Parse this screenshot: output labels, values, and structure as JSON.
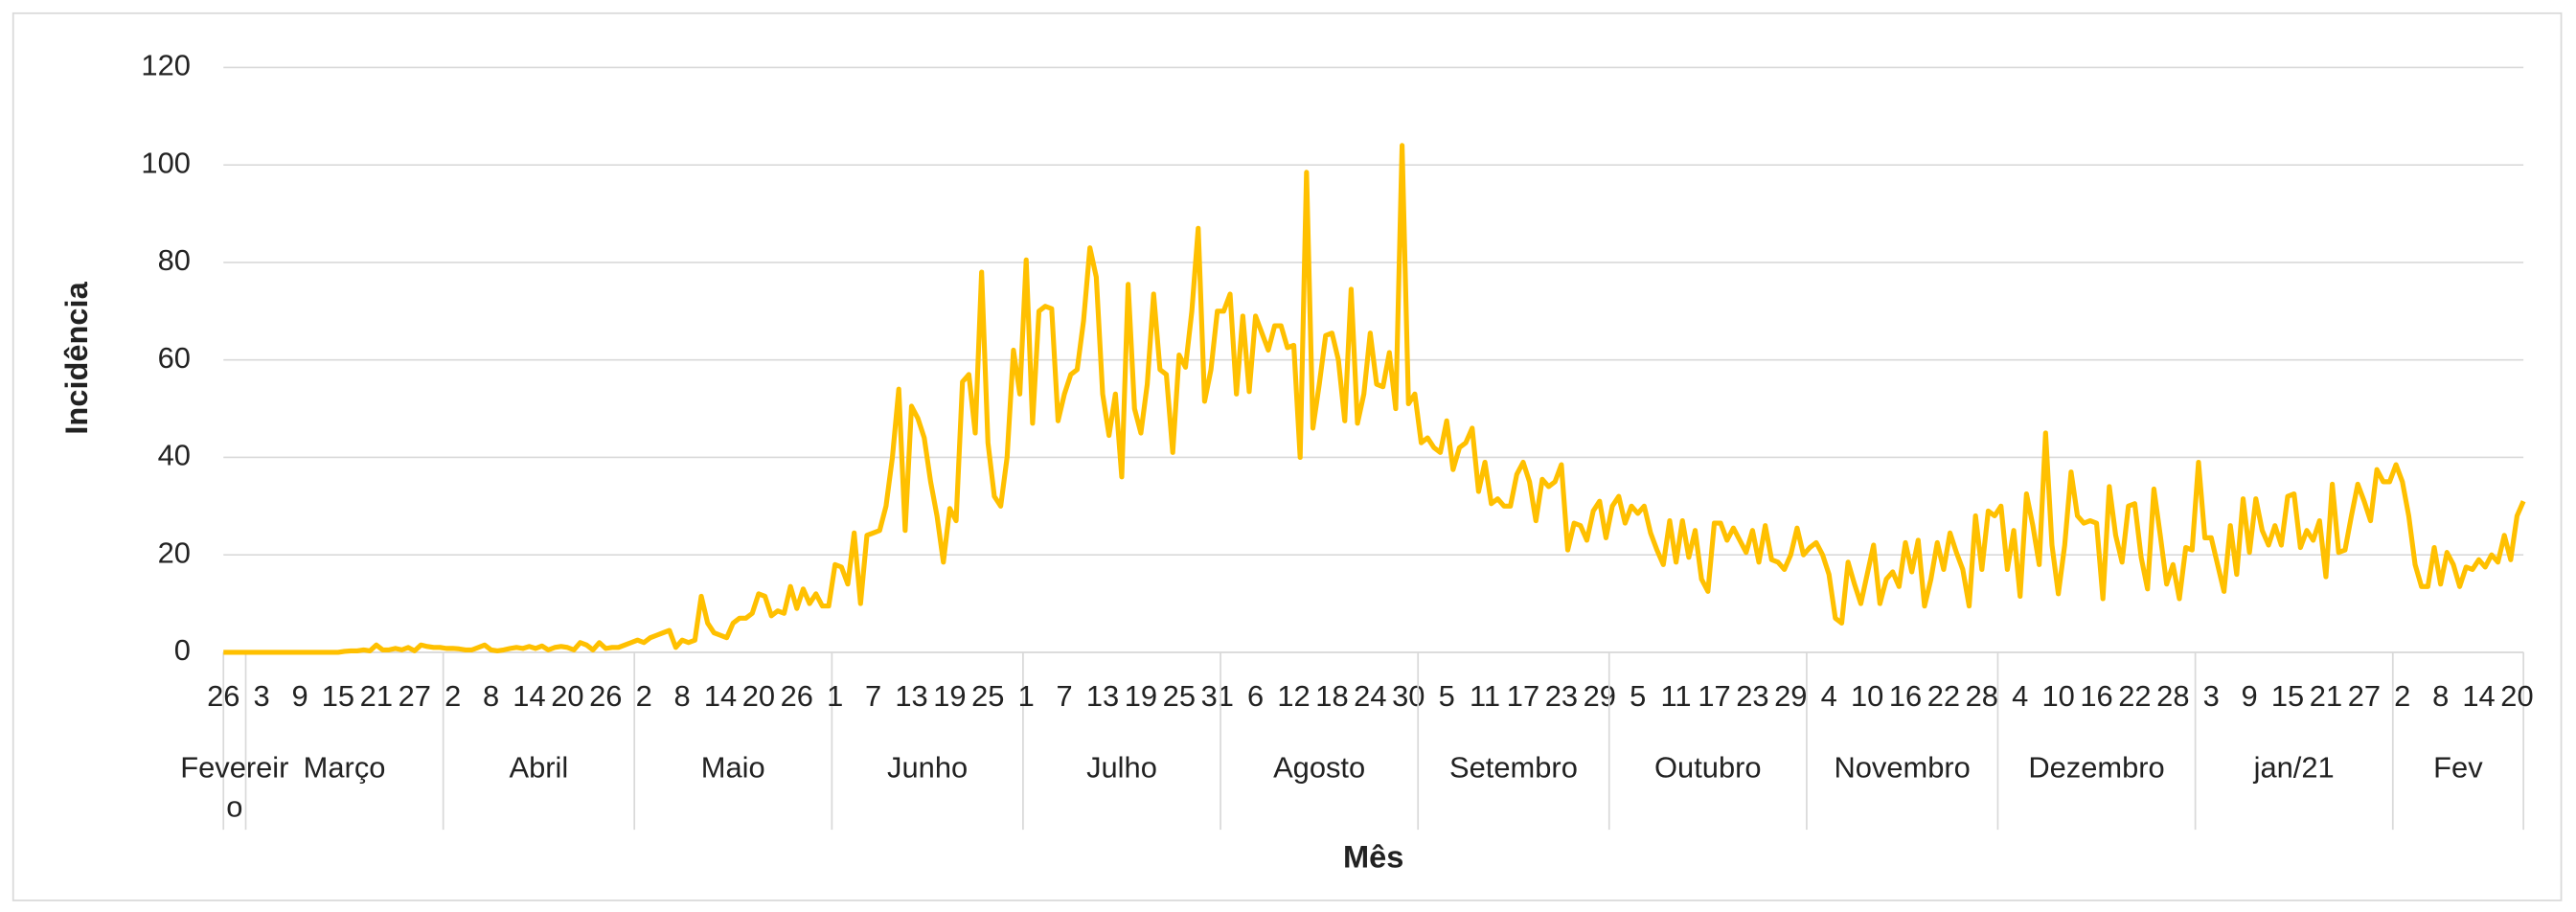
{
  "chart_data": {
    "type": "line",
    "ylabel": "Incidência",
    "xlabel": "Mês",
    "color": "#FFC000",
    "ylim": [
      0,
      120
    ],
    "yticks": [
      0,
      20,
      40,
      60,
      80,
      100,
      120
    ],
    "grid": true,
    "months": [
      {
        "label": "Fevereiro",
        "x": [
          26,
          null,
          null,
          null
        ],
        "values": [
          0,
          0,
          0,
          0
        ]
      },
      {
        "label": "Março",
        "x": [
          null,
          null,
          3,
          null,
          null,
          null,
          null,
          null,
          9,
          null,
          null,
          null,
          null,
          null,
          15,
          null,
          null,
          null,
          null,
          null,
          21,
          null,
          null,
          null,
          null,
          null,
          27,
          null,
          null,
          null,
          null
        ],
        "values": [
          0,
          0,
          0,
          0,
          0,
          0,
          0,
          0,
          0,
          0,
          0,
          0,
          0,
          0,
          0,
          0.2,
          0.3,
          0.3,
          0.5,
          0.3,
          1.5,
          0.5,
          0.5,
          0.8,
          0.5,
          1,
          0.3,
          1.5,
          1.2,
          1,
          1
        ]
      },
      {
        "label": "Abril",
        "x": [
          null,
          2,
          null,
          null,
          null,
          null,
          null,
          8,
          null,
          null,
          null,
          null,
          null,
          14,
          null,
          null,
          null,
          null,
          null,
          20,
          null,
          null,
          null,
          null,
          null,
          26,
          null,
          null,
          null,
          null
        ],
        "values": [
          0.8,
          0.8,
          0.7,
          0.5,
          0.5,
          1,
          1.5,
          0.5,
          0.3,
          0.5,
          0.8,
          1,
          0.8,
          1.2,
          0.8,
          1.3,
          0.5,
          1,
          1.2,
          1,
          0.5,
          2,
          1.5,
          0.5,
          2,
          0.8,
          1,
          1,
          1.5,
          2
        ]
      },
      {
        "label": "Maio",
        "x": [
          null,
          2,
          null,
          null,
          null,
          null,
          null,
          8,
          null,
          null,
          null,
          null,
          null,
          14,
          null,
          null,
          null,
          null,
          null,
          20,
          null,
          null,
          null,
          null,
          null,
          26,
          null,
          null,
          null,
          null,
          null
        ],
        "values": [
          2.5,
          2,
          3,
          3.5,
          4,
          4.5,
          1,
          2.5,
          2,
          2.5,
          11.5,
          6,
          4,
          3.5,
          3,
          6,
          7,
          7,
          8,
          12,
          11.5,
          7.5,
          8.5,
          8,
          13.5,
          9,
          13,
          10,
          12,
          9.5,
          9.5
        ]
      },
      {
        "label": "Junho",
        "x": [
          1,
          null,
          null,
          null,
          null,
          null,
          7,
          null,
          null,
          null,
          null,
          null,
          13,
          null,
          null,
          null,
          null,
          null,
          19,
          null,
          null,
          null,
          null,
          null,
          25,
          null,
          null,
          null,
          null,
          null
        ],
        "values": [
          18,
          17.5,
          14,
          24.5,
          10,
          24,
          24.5,
          25,
          30,
          40,
          54,
          25,
          50.5,
          48,
          44,
          35,
          28,
          18.5,
          29.5,
          27,
          55.5,
          57,
          45,
          78,
          43,
          32,
          30,
          40,
          62,
          53
        ]
      },
      {
        "label": "Julho",
        "x": [
          1,
          null,
          null,
          null,
          null,
          null,
          7,
          null,
          null,
          null,
          null,
          null,
          13,
          null,
          null,
          null,
          null,
          null,
          19,
          null,
          null,
          null,
          null,
          null,
          25,
          null,
          null,
          null,
          null,
          null,
          31
        ],
        "values": [
          80.5,
          47,
          70,
          71,
          70.5,
          47.5,
          53,
          57,
          58,
          68,
          83,
          77,
          53,
          44.5,
          53,
          36,
          75.5,
          50,
          45,
          55,
          73.5,
          58,
          57,
          41,
          61,
          58.5,
          70,
          87,
          51.5,
          58,
          70
        ]
      },
      {
        "label": "Agosto",
        "x": [
          null,
          null,
          null,
          null,
          null,
          6,
          null,
          null,
          null,
          null,
          null,
          12,
          null,
          null,
          null,
          null,
          null,
          18,
          null,
          null,
          null,
          null,
          null,
          24,
          null,
          null,
          null,
          null,
          null,
          30,
          null
        ],
        "values": [
          70,
          73.5,
          53,
          69,
          53.5,
          69,
          65.5,
          62,
          67,
          67,
          62.5,
          63,
          40,
          98.5,
          46,
          55,
          65,
          65.5,
          60,
          47.5,
          74.5,
          47,
          53,
          65.5,
          55,
          54.5,
          61.5,
          50,
          104,
          51,
          53
        ]
      },
      {
        "label": "Setembro",
        "x": [
          null,
          null,
          null,
          null,
          5,
          null,
          null,
          null,
          null,
          null,
          11,
          null,
          null,
          null,
          null,
          null,
          17,
          null,
          null,
          null,
          null,
          null,
          23,
          null,
          null,
          null,
          null,
          null,
          29,
          null
        ],
        "values": [
          43,
          44,
          42,
          41,
          47.5,
          37.5,
          42,
          43,
          46,
          33,
          39,
          30.5,
          31.5,
          30,
          30,
          36.5,
          39,
          35,
          27,
          35.5,
          34,
          35,
          38.5,
          21,
          26.5,
          26,
          23,
          29,
          31,
          23.5
        ]
      },
      {
        "label": "Outubro",
        "x": [
          null,
          null,
          null,
          null,
          5,
          null,
          null,
          null,
          null,
          null,
          11,
          null,
          null,
          null,
          null,
          null,
          17,
          null,
          null,
          null,
          null,
          null,
          23,
          null,
          null,
          null,
          null,
          null,
          29,
          null,
          null
        ],
        "values": [
          30,
          32,
          26.5,
          30,
          28.5,
          30,
          24.5,
          21,
          18,
          27,
          18.5,
          27,
          19.5,
          25,
          15,
          12.5,
          26.5,
          26.5,
          23,
          25.5,
          23,
          20.5,
          25,
          18.5,
          26,
          19,
          18.5,
          17,
          20,
          25.5,
          20
        ]
      },
      {
        "label": "Novembro",
        "x": [
          null,
          null,
          null,
          4,
          null,
          null,
          null,
          null,
          null,
          10,
          null,
          null,
          null,
          null,
          null,
          16,
          null,
          null,
          null,
          null,
          null,
          22,
          null,
          null,
          null,
          null,
          null,
          28,
          null,
          null
        ],
        "values": [
          21.5,
          22.5,
          20,
          16,
          7,
          6,
          18.5,
          14,
          10,
          16,
          22,
          10,
          15,
          16.5,
          13.5,
          22.5,
          16.5,
          23,
          9.5,
          15,
          22.5,
          17,
          24.5,
          20.5,
          17,
          9.5,
          28,
          17,
          29,
          28
        ]
      },
      {
        "label": "Dezembro",
        "x": [
          null,
          null,
          null,
          4,
          null,
          null,
          null,
          null,
          null,
          10,
          null,
          null,
          null,
          null,
          null,
          16,
          null,
          null,
          null,
          null,
          null,
          22,
          null,
          null,
          null,
          null,
          null,
          28,
          null,
          null,
          null
        ],
        "values": [
          30,
          17,
          25,
          11.5,
          32.5,
          26,
          18,
          45,
          22,
          12,
          22,
          37,
          28,
          26.5,
          27,
          26.5,
          11,
          34,
          24,
          18.5,
          30,
          30.5,
          19.5,
          13,
          33.5,
          24,
          14,
          18,
          11,
          21.5,
          21
        ]
      },
      {
        "label": "jan/21",
        "x": [
          null,
          null,
          3,
          null,
          null,
          null,
          null,
          null,
          9,
          null,
          null,
          null,
          null,
          null,
          15,
          null,
          null,
          null,
          null,
          null,
          21,
          null,
          null,
          null,
          null,
          null,
          27,
          null,
          null,
          null,
          null
        ],
        "values": [
          39,
          23.5,
          23.5,
          18,
          12.5,
          26,
          16,
          31.5,
          20.5,
          31.5,
          25,
          22,
          26,
          22,
          32,
          32.5,
          21.5,
          25,
          23,
          27,
          15.5,
          34.5,
          20.5,
          21,
          28,
          34.5,
          31,
          27,
          37.5,
          35,
          35
        ]
      },
      {
        "label": "Fev",
        "x": [
          null,
          2,
          null,
          null,
          null,
          null,
          null,
          8,
          null,
          null,
          null,
          null,
          null,
          14,
          null,
          null,
          null,
          null,
          null,
          20,
          null
        ],
        "values": [
          38.5,
          35,
          28,
          18,
          13.5,
          13.5,
          21.5,
          14,
          20.5,
          18,
          13.5,
          17.5,
          17,
          19,
          17.5,
          20,
          18.5,
          24,
          19,
          28,
          31
        ]
      }
    ]
  }
}
